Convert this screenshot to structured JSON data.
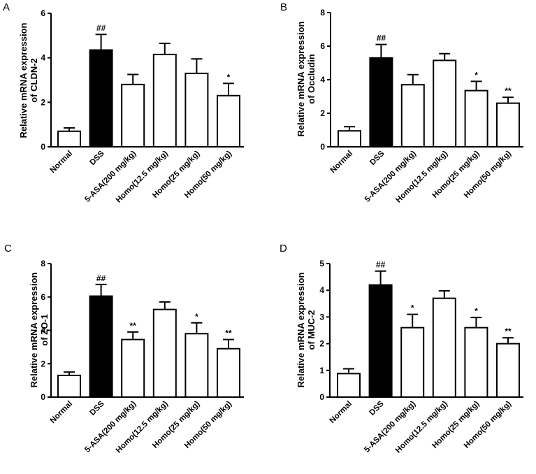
{
  "chart_data": [
    {
      "panel": "A",
      "type": "bar",
      "ylabel_line1": "Relative mRNA expression",
      "ylabel_line2": "of CLDN-2",
      "ylim": [
        0,
        6
      ],
      "yticks": [
        "0",
        "2",
        "4",
        "6"
      ],
      "categories": [
        "Normal",
        "DSS",
        "5-ASA(200 mg/kg)",
        "Homo(12.5 mg/kg)",
        "Homo(25 mg/kg)",
        "Homo(50 mg/kg)"
      ],
      "values": [
        0.7,
        4.35,
        2.8,
        4.15,
        3.3,
        2.3
      ],
      "errors": [
        0.15,
        0.7,
        0.45,
        0.5,
        0.65,
        0.55
      ],
      "annotations": [
        "",
        "##",
        "",
        "",
        "",
        "*"
      ],
      "fills": [
        "#ffffff",
        "#000000",
        "#ffffff",
        "#ffffff",
        "#ffffff",
        "#ffffff"
      ]
    },
    {
      "panel": "B",
      "type": "bar",
      "ylabel_line1": "Relative mRNA expression",
      "ylabel_line2": "of Occludin",
      "ylim": [
        0,
        8
      ],
      "yticks": [
        "0",
        "2",
        "4",
        "6",
        "8"
      ],
      "categories": [
        "Normal",
        "DSS",
        "5-ASA(200 mg/kg)",
        "Homo(12.5 mg/kg)",
        "Homo(25 mg/kg)",
        "Homo(50 mg/kg)"
      ],
      "values": [
        0.95,
        5.3,
        3.7,
        5.15,
        3.35,
        2.6
      ],
      "errors": [
        0.25,
        0.8,
        0.6,
        0.4,
        0.55,
        0.35
      ],
      "annotations": [
        "",
        "##",
        "",
        "",
        "*",
        "**"
      ],
      "fills": [
        "#ffffff",
        "#000000",
        "#ffffff",
        "#ffffff",
        "#ffffff",
        "#ffffff"
      ]
    },
    {
      "panel": "C",
      "type": "bar",
      "ylabel_line1": "Relative mRNA expression",
      "ylabel_line2": "of ZO-1",
      "ylim": [
        0,
        8
      ],
      "yticks": [
        "0",
        "2",
        "4",
        "6",
        "8"
      ],
      "categories": [
        "Normal",
        "DSS",
        "5-ASA(200 mg/kg)",
        "Homo(12.5 mg/kg)",
        "Homo(25 mg/kg)",
        "Homo(50 mg/kg)"
      ],
      "values": [
        1.3,
        6.05,
        3.45,
        5.25,
        3.8,
        2.9
      ],
      "errors": [
        0.2,
        0.7,
        0.45,
        0.45,
        0.65,
        0.55
      ],
      "annotations": [
        "",
        "##",
        "**",
        "",
        "*",
        "**"
      ],
      "fills": [
        "#ffffff",
        "#000000",
        "#ffffff",
        "#ffffff",
        "#ffffff",
        "#ffffff"
      ]
    },
    {
      "panel": "D",
      "type": "bar",
      "ylabel_line1": "Relative mRNA expression",
      "ylabel_line2": "of MUC-2",
      "ylim": [
        0,
        5
      ],
      "yticks": [
        "0",
        "1",
        "2",
        "3",
        "4",
        "5"
      ],
      "categories": [
        "Normal",
        "DSS",
        "5-ASA(200 mg/kg)",
        "Homo(12.5 mg/kg)",
        "Homo(25 mg/kg)",
        "Homo(50 mg/kg)"
      ],
      "values": [
        0.88,
        4.2,
        2.6,
        3.7,
        2.6,
        2.0
      ],
      "errors": [
        0.18,
        0.52,
        0.5,
        0.28,
        0.38,
        0.22
      ],
      "annotations": [
        "",
        "##",
        "*",
        "",
        "*",
        "**"
      ],
      "fills": [
        "#ffffff",
        "#000000",
        "#ffffff",
        "#ffffff",
        "#ffffff",
        "#ffffff"
      ]
    }
  ]
}
